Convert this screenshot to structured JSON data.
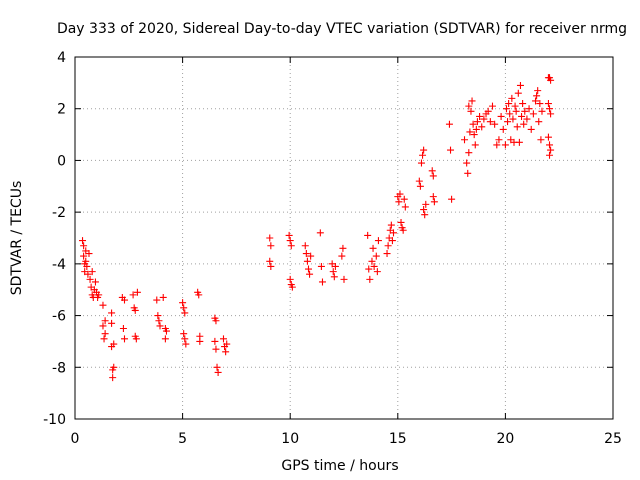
{
  "chart_data": {
    "type": "scatter",
    "title": "Day 333 of 2020, Sidereal Day-to-day VTEC variation (SDTVAR) for receiver nrmg",
    "xlabel": "GPS time / hours",
    "ylabel": "SDTVAR / TECUs",
    "xlim": [
      0,
      25
    ],
    "ylim": [
      -10,
      4
    ],
    "x_ticks": [
      0,
      5,
      10,
      15,
      20,
      25
    ],
    "y_ticks": [
      -10,
      -8,
      -6,
      -4,
      -2,
      0,
      2,
      4
    ],
    "grid": true,
    "marker": "+",
    "marker_color": "#ff0000",
    "series": [
      {
        "name": "SDTVAR",
        "points": [
          [
            0.35,
            -3.1
          ],
          [
            0.4,
            -3.3
          ],
          [
            0.4,
            -3.7
          ],
          [
            0.45,
            -4.0
          ],
          [
            0.45,
            -4.3
          ],
          [
            0.5,
            -3.5
          ],
          [
            0.5,
            -3.9
          ],
          [
            0.55,
            -4.1
          ],
          [
            0.6,
            -4.4
          ],
          [
            0.65,
            -3.6
          ],
          [
            0.7,
            -4.6
          ],
          [
            0.75,
            -4.9
          ],
          [
            0.8,
            -5.2
          ],
          [
            0.8,
            -4.3
          ],
          [
            0.85,
            -5.3
          ],
          [
            0.9,
            -5.0
          ],
          [
            0.95,
            -4.7
          ],
          [
            1.0,
            -5.1
          ],
          [
            1.05,
            -5.3
          ],
          [
            1.1,
            -5.2
          ],
          [
            1.3,
            -5.6
          ],
          [
            1.3,
            -6.4
          ],
          [
            1.35,
            -6.9
          ],
          [
            1.4,
            -6.2
          ],
          [
            1.4,
            -6.7
          ],
          [
            1.7,
            -5.9
          ],
          [
            1.7,
            -6.3
          ],
          [
            1.7,
            -7.2
          ],
          [
            1.75,
            -8.1
          ],
          [
            1.75,
            -8.4
          ],
          [
            1.8,
            -8.0
          ],
          [
            1.8,
            -7.1
          ],
          [
            2.2,
            -5.3
          ],
          [
            2.25,
            -6.5
          ],
          [
            2.3,
            -6.9
          ],
          [
            2.3,
            -5.4
          ],
          [
            2.7,
            -5.2
          ],
          [
            2.75,
            -5.7
          ],
          [
            2.8,
            -5.8
          ],
          [
            2.8,
            -6.8
          ],
          [
            2.85,
            -6.9
          ],
          [
            2.9,
            -5.1
          ],
          [
            3.8,
            -5.4
          ],
          [
            3.85,
            -6.0
          ],
          [
            3.9,
            -6.2
          ],
          [
            3.95,
            -6.4
          ],
          [
            4.1,
            -5.3
          ],
          [
            4.2,
            -6.5
          ],
          [
            4.2,
            -6.9
          ],
          [
            4.25,
            -6.6
          ],
          [
            5.0,
            -5.5
          ],
          [
            5.05,
            -5.7
          ],
          [
            5.1,
            -5.9
          ],
          [
            5.05,
            -6.7
          ],
          [
            5.1,
            -6.9
          ],
          [
            5.15,
            -7.1
          ],
          [
            5.7,
            -5.1
          ],
          [
            5.75,
            -5.2
          ],
          [
            5.8,
            -6.8
          ],
          [
            5.8,
            -7.0
          ],
          [
            6.5,
            -6.1
          ],
          [
            6.55,
            -6.2
          ],
          [
            6.5,
            -7.0
          ],
          [
            6.55,
            -7.3
          ],
          [
            6.6,
            -8.0
          ],
          [
            6.65,
            -8.2
          ],
          [
            6.9,
            -6.9
          ],
          [
            6.95,
            -7.2
          ],
          [
            7.0,
            -7.4
          ],
          [
            7.05,
            -7.1
          ],
          [
            9.05,
            -3.0
          ],
          [
            9.1,
            -3.3
          ],
          [
            9.05,
            -3.9
          ],
          [
            9.1,
            -4.1
          ],
          [
            9.95,
            -2.9
          ],
          [
            10.0,
            -3.1
          ],
          [
            10.05,
            -3.3
          ],
          [
            10.0,
            -4.6
          ],
          [
            10.05,
            -4.8
          ],
          [
            10.1,
            -4.9
          ],
          [
            10.7,
            -3.3
          ],
          [
            10.75,
            -3.6
          ],
          [
            10.8,
            -3.9
          ],
          [
            10.85,
            -4.2
          ],
          [
            10.9,
            -4.4
          ],
          [
            10.95,
            -3.7
          ],
          [
            11.4,
            -2.8
          ],
          [
            11.45,
            -4.1
          ],
          [
            11.5,
            -4.7
          ],
          [
            11.95,
            -4.0
          ],
          [
            12.0,
            -4.3
          ],
          [
            12.05,
            -4.5
          ],
          [
            12.1,
            -4.1
          ],
          [
            12.4,
            -3.7
          ],
          [
            12.45,
            -3.4
          ],
          [
            12.5,
            -4.6
          ],
          [
            13.6,
            -2.9
          ],
          [
            13.65,
            -4.2
          ],
          [
            13.7,
            -4.6
          ],
          [
            13.8,
            -3.9
          ],
          [
            13.85,
            -3.4
          ],
          [
            13.9,
            -4.1
          ],
          [
            14.0,
            -3.7
          ],
          [
            14.05,
            -4.3
          ],
          [
            14.1,
            -3.1
          ],
          [
            14.5,
            -3.6
          ],
          [
            14.55,
            -3.3
          ],
          [
            14.6,
            -3.0
          ],
          [
            14.65,
            -2.7
          ],
          [
            14.7,
            -2.5
          ],
          [
            14.75,
            -3.1
          ],
          [
            14.8,
            -2.8
          ],
          [
            15.0,
            -1.4
          ],
          [
            15.05,
            -1.6
          ],
          [
            15.1,
            -1.3
          ],
          [
            15.15,
            -2.4
          ],
          [
            15.2,
            -2.6
          ],
          [
            15.25,
            -2.7
          ],
          [
            15.3,
            -1.5
          ],
          [
            15.35,
            -1.8
          ],
          [
            16.0,
            -0.8
          ],
          [
            16.05,
            -1.0
          ],
          [
            16.1,
            -0.1
          ],
          [
            16.15,
            0.2
          ],
          [
            16.2,
            0.4
          ],
          [
            16.2,
            -1.9
          ],
          [
            16.25,
            -2.1
          ],
          [
            16.3,
            -1.7
          ],
          [
            16.6,
            -0.4
          ],
          [
            16.65,
            -0.6
          ],
          [
            16.65,
            -1.4
          ],
          [
            16.7,
            -1.6
          ],
          [
            17.4,
            1.4
          ],
          [
            17.45,
            0.4
          ],
          [
            17.5,
            -1.5
          ],
          [
            18.1,
            0.8
          ],
          [
            18.2,
            -0.1
          ],
          [
            18.25,
            -0.5
          ],
          [
            18.3,
            0.3
          ],
          [
            18.35,
            1.1
          ],
          [
            18.3,
            2.1
          ],
          [
            18.4,
            1.9
          ],
          [
            18.45,
            2.3
          ],
          [
            18.5,
            1.4
          ],
          [
            18.55,
            1.0
          ],
          [
            18.6,
            0.6
          ],
          [
            18.65,
            1.2
          ],
          [
            18.7,
            1.5
          ],
          [
            18.8,
            1.7
          ],
          [
            18.9,
            1.3
          ],
          [
            19.0,
            1.6
          ],
          [
            19.1,
            1.8
          ],
          [
            19.2,
            1.9
          ],
          [
            19.3,
            1.5
          ],
          [
            19.4,
            2.1
          ],
          [
            19.5,
            1.4
          ],
          [
            19.6,
            0.6
          ],
          [
            19.7,
            0.8
          ],
          [
            19.8,
            1.7
          ],
          [
            19.9,
            1.2
          ],
          [
            20.0,
            0.6
          ],
          [
            20.05,
            2.0
          ],
          [
            20.1,
            1.5
          ],
          [
            20.15,
            2.2
          ],
          [
            20.2,
            1.8
          ],
          [
            20.25,
            0.8
          ],
          [
            20.3,
            2.4
          ],
          [
            20.35,
            1.6
          ],
          [
            20.4,
            0.7
          ],
          [
            20.45,
            2.1
          ],
          [
            20.5,
            1.9
          ],
          [
            20.55,
            1.3
          ],
          [
            20.6,
            2.6
          ],
          [
            20.65,
            0.7
          ],
          [
            20.7,
            2.9
          ],
          [
            20.75,
            1.7
          ],
          [
            20.8,
            2.2
          ],
          [
            20.85,
            1.4
          ],
          [
            20.9,
            1.9
          ],
          [
            21.0,
            1.6
          ],
          [
            21.1,
            2.0
          ],
          [
            21.2,
            1.2
          ],
          [
            21.3,
            1.8
          ],
          [
            21.4,
            2.3
          ],
          [
            21.45,
            2.5
          ],
          [
            21.5,
            2.7
          ],
          [
            21.55,
            1.5
          ],
          [
            21.6,
            2.2
          ],
          [
            21.65,
            0.8
          ],
          [
            21.7,
            1.9
          ],
          [
            22.0,
            3.2
          ],
          [
            22.05,
            3.2
          ],
          [
            22.1,
            3.1
          ],
          [
            22.0,
            2.2
          ],
          [
            22.05,
            2.0
          ],
          [
            22.1,
            1.8
          ],
          [
            22.0,
            0.9
          ],
          [
            22.05,
            0.6
          ],
          [
            22.1,
            0.4
          ],
          [
            22.05,
            0.2
          ]
        ]
      }
    ]
  }
}
